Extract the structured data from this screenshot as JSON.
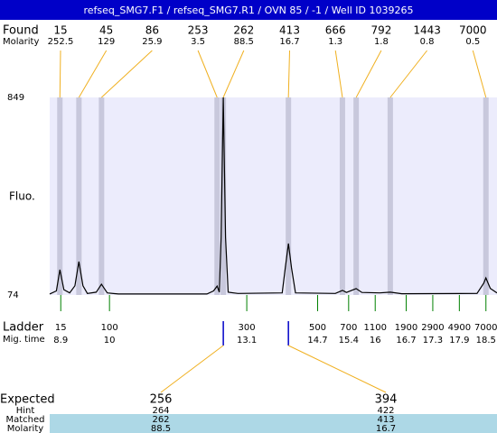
{
  "title": "refseq_SMG7.F1 / refseq_SMG7.R1 / OVN 85 / -1 / Well ID 1039265",
  "found": {
    "label": "Found",
    "sublabel": "Molarity",
    "peaks": [
      {
        "size": 15,
        "molarity": 252.5,
        "time": 8.88
      },
      {
        "size": 45,
        "molarity": 129,
        "time": 9.31
      },
      {
        "size": 86,
        "molarity": 25.9,
        "time": 9.82
      },
      {
        "size": 253,
        "molarity": 3.5,
        "time": 12.43
      },
      {
        "size": 262,
        "molarity": 88.5,
        "time": 12.57
      },
      {
        "size": 413,
        "molarity": 16.7,
        "time": 14.04
      },
      {
        "size": 666,
        "molarity": 1.3,
        "time": 15.26
      },
      {
        "size": 792,
        "molarity": 1.8,
        "time": 15.57
      },
      {
        "size": 1443,
        "molarity": 0.8,
        "time": 16.34
      },
      {
        "size": 7000,
        "molarity": 0.5,
        "time": 18.5
      }
    ]
  },
  "plot": {
    "ylabel": "Fluo.",
    "ylim": [
      74,
      849
    ],
    "yticks": [
      849,
      74
    ],
    "xlim": [
      8.65,
      18.75
    ],
    "trace": {
      "x": [
        8.65,
        8.8,
        8.88,
        8.97,
        9.1,
        9.22,
        9.31,
        9.4,
        9.5,
        9.7,
        9.82,
        9.95,
        10.2,
        12.2,
        12.35,
        12.43,
        12.48,
        12.52,
        12.57,
        12.62,
        12.68,
        12.9,
        13.9,
        13.97,
        14.04,
        14.11,
        14.2,
        15.1,
        15.26,
        15.35,
        15.57,
        15.7,
        16.1,
        16.34,
        16.6,
        18.3,
        18.45,
        18.5,
        18.6,
        18.75
      ],
      "y": [
        78,
        90,
        173,
        95,
        82,
        110,
        205,
        110,
        80,
        85,
        116,
        82,
        78,
        78,
        90,
        109,
        85,
        300,
        849,
        300,
        85,
        80,
        82,
        180,
        276,
        180,
        82,
        80,
        92,
        84,
        99,
        84,
        82,
        85,
        79,
        80,
        120,
        141,
        100,
        82
      ]
    }
  },
  "ladder": {
    "label": "Ladder",
    "sublabel": "Mig. time",
    "sizes": [
      15,
      100,
      300,
      500,
      700,
      1100,
      1900,
      2900,
      4900,
      7000
    ],
    "times": [
      8.9,
      10,
      13.1,
      14.7,
      15.4,
      16,
      16.7,
      17.3,
      17.9,
      18.5
    ]
  },
  "expected": {
    "labels": [
      "Expected",
      "Hint",
      "Matched",
      "Molarity"
    ],
    "columns": [
      {
        "expected": 256,
        "hint": 264,
        "matched": 262,
        "molarity": 88.5
      },
      {
        "expected": 394,
        "hint": 422,
        "matched": 413,
        "molarity": 16.7
      }
    ]
  }
}
